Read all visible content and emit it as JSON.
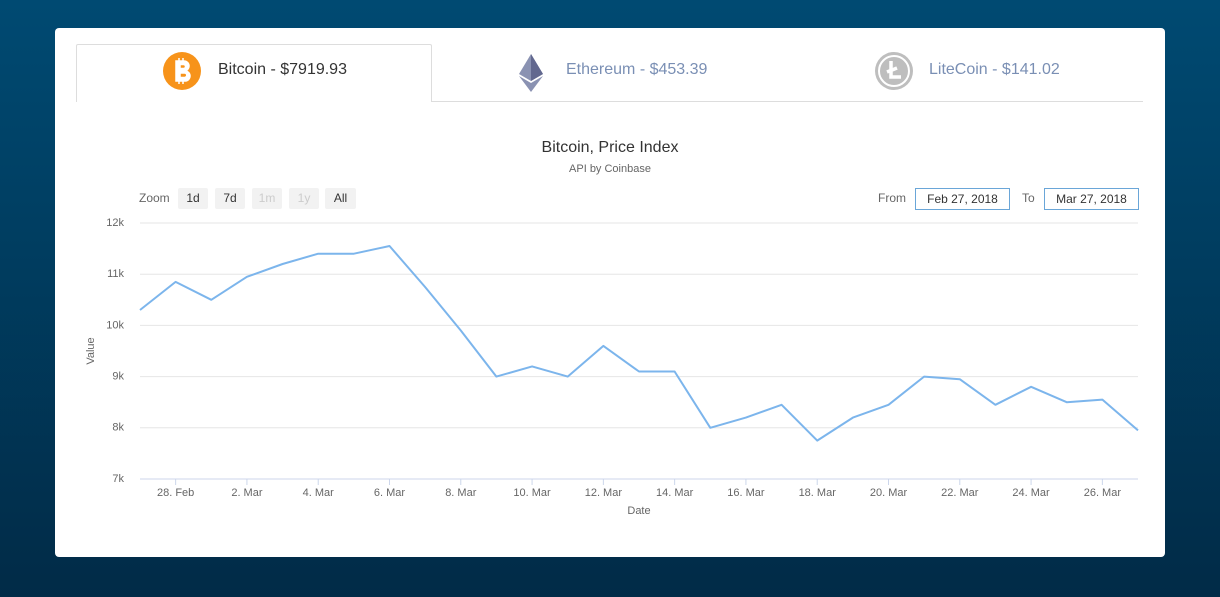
{
  "tabs": [
    {
      "label": "Bitcoin - $7919.93"
    },
    {
      "label": "Ethereum - $453.39"
    },
    {
      "label": "LiteCoin - $141.02"
    }
  ],
  "controls": {
    "zoom_label": "Zoom",
    "zoom_buttons": [
      "1d",
      "7d",
      "1m",
      "1y",
      "All"
    ],
    "from_label": "From",
    "from": "Feb 27, 2018",
    "to_label": "To",
    "to": "Mar 27, 2018"
  },
  "chart_data": {
    "type": "line",
    "title": "Bitcoin, Price Index",
    "subtitle": "API by Coinbase",
    "xlabel": "Date",
    "ylabel": "Value",
    "color": "#7cb5ec",
    "grid": true,
    "x": [
      "2018-02-27",
      "2018-02-28",
      "2018-03-01",
      "2018-03-02",
      "2018-03-03",
      "2018-03-04",
      "2018-03-05",
      "2018-03-06",
      "2018-03-07",
      "2018-03-08",
      "2018-03-09",
      "2018-03-10",
      "2018-03-11",
      "2018-03-12",
      "2018-03-13",
      "2018-03-14",
      "2018-03-15",
      "2018-03-16",
      "2018-03-17",
      "2018-03-18",
      "2018-03-19",
      "2018-03-20",
      "2018-03-21",
      "2018-03-22",
      "2018-03-23",
      "2018-03-24",
      "2018-03-25",
      "2018-03-26",
      "2018-03-27"
    ],
    "values": [
      10300,
      10850,
      10500,
      10950,
      11200,
      11400,
      11400,
      11550,
      10750,
      9900,
      9000,
      9200,
      9000,
      9600,
      9100,
      9100,
      8000,
      8200,
      8450,
      7750,
      8200,
      8450,
      9000,
      8950,
      8450,
      8800,
      8500,
      8550,
      7950
    ],
    "xlim": [
      "2018-02-27",
      "2018-03-27"
    ],
    "xticks": [
      {
        "value": "2018-02-28",
        "label": "28. Feb"
      },
      {
        "value": "2018-03-02",
        "label": "2. Mar"
      },
      {
        "value": "2018-03-04",
        "label": "4. Mar"
      },
      {
        "value": "2018-03-06",
        "label": "6. Mar"
      },
      {
        "value": "2018-03-08",
        "label": "8. Mar"
      },
      {
        "value": "2018-03-10",
        "label": "10. Mar"
      },
      {
        "value": "2018-03-12",
        "label": "12. Mar"
      },
      {
        "value": "2018-03-14",
        "label": "14. Mar"
      },
      {
        "value": "2018-03-16",
        "label": "16. Mar"
      },
      {
        "value": "2018-03-18",
        "label": "18. Mar"
      },
      {
        "value": "2018-03-20",
        "label": "20. Mar"
      },
      {
        "value": "2018-03-22",
        "label": "22. Mar"
      },
      {
        "value": "2018-03-24",
        "label": "24. Mar"
      },
      {
        "value": "2018-03-26",
        "label": "26. Mar"
      }
    ],
    "ylim": [
      7000,
      12000
    ],
    "yticks": [
      {
        "value": 7000,
        "label": "7k"
      },
      {
        "value": 8000,
        "label": "8k"
      },
      {
        "value": 9000,
        "label": "9k"
      },
      {
        "value": 10000,
        "label": "10k"
      },
      {
        "value": 11000,
        "label": "11k"
      },
      {
        "value": 12000,
        "label": "12k"
      }
    ]
  }
}
